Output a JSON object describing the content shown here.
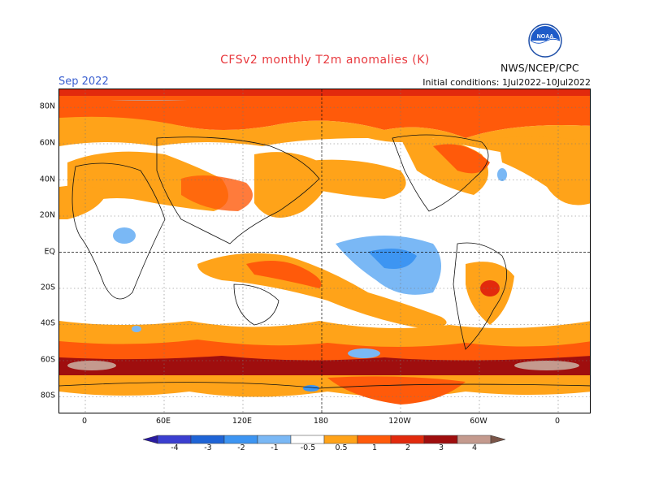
{
  "header": {
    "title": "CFSv2 monthly T2m anomalies (K)",
    "month": "Sep 2022",
    "init_conditions": "Initial conditions: 1Jul2022–10Jul2022",
    "agency": "NWS/NCEP/CPC",
    "logo_text": "NOAA"
  },
  "map": {
    "lat_labels": [
      "80N",
      "60N",
      "40N",
      "20N",
      "EQ",
      "20S",
      "40S",
      "60S",
      "80S"
    ],
    "lon_labels": [
      "0",
      "60E",
      "120E",
      "180",
      "120W",
      "60W",
      "0"
    ]
  },
  "legend": {
    "labels": [
      "-4",
      "-3",
      "-2",
      "-1",
      "-0.5",
      "0.5",
      "1",
      "2",
      "3",
      "4"
    ],
    "colors": [
      "#2a1ba0",
      "#3b3fd0",
      "#1f64d6",
      "#3d95f2",
      "#7ab8f5",
      "#ffffff",
      "#ffa319",
      "#ff5a0a",
      "#e22a0d",
      "#9f0e0e",
      "#c49a8e",
      "#7a5548"
    ]
  }
}
